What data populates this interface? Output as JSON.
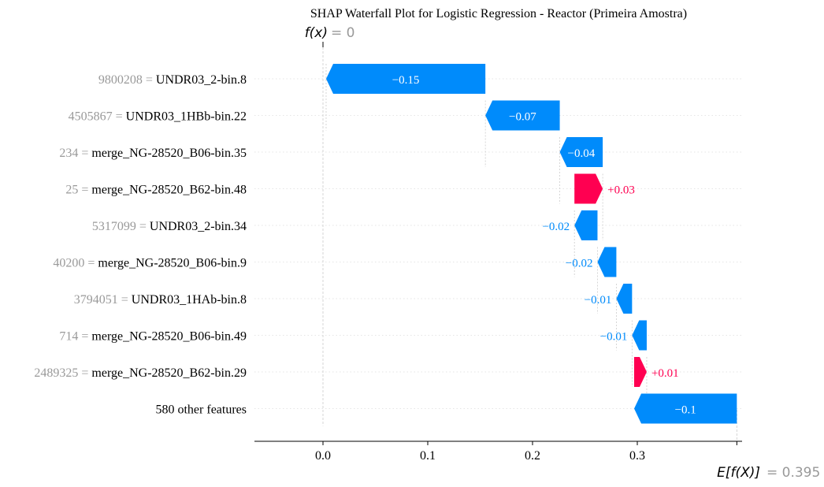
{
  "chart_data": {
    "type": "waterfall",
    "title": "SHAP Waterfall Plot for Logistic Regression - Reactor (Primeira Amostra)",
    "fx_label": "f(x)",
    "fx_value_text": "= 0",
    "base_label": "E[f(X)]",
    "base_value_text": "= 0.395",
    "base_value": 0.395,
    "fx_value": 0.0,
    "xlim": [
      -0.065,
      0.397
    ],
    "xticks": [
      0.0,
      0.1,
      0.2,
      0.3
    ],
    "xtick_labels": [
      "0.0",
      "0.1",
      "0.2",
      "0.3"
    ],
    "features": [
      {
        "value": "9800208",
        "name": "UNDR03_2-bin.8",
        "start": 0.155,
        "end": 0.003,
        "label": "−0.15",
        "sign": "neg"
      },
      {
        "value": "4505867",
        "name": "UNDR03_1HBb-bin.22",
        "start": 0.226,
        "end": 0.155,
        "label": "−0.07",
        "sign": "neg"
      },
      {
        "value": "234",
        "name": "merge_NG-28520_B06-bin.35",
        "start": 0.267,
        "end": 0.226,
        "label": "−0.04",
        "sign": "neg"
      },
      {
        "value": "25",
        "name": "merge_NG-28520_B62-bin.48",
        "start": 0.24,
        "end": 0.267,
        "label": "+0.03",
        "sign": "pos"
      },
      {
        "value": "5317099",
        "name": "UNDR03_2-bin.34",
        "start": 0.262,
        "end": 0.24,
        "label": "−0.02",
        "sign": "neg"
      },
      {
        "value": "40200",
        "name": "merge_NG-28520_B06-bin.9",
        "start": 0.28,
        "end": 0.262,
        "label": "−0.02",
        "sign": "neg"
      },
      {
        "value": "3794051",
        "name": "UNDR03_1HAb-bin.8",
        "start": 0.295,
        "end": 0.28,
        "label": "−0.01",
        "sign": "neg"
      },
      {
        "value": "714",
        "name": "merge_NG-28520_B06-bin.49",
        "start": 0.309,
        "end": 0.295,
        "label": "−0.01",
        "sign": "neg"
      },
      {
        "value": "2489325",
        "name": "merge_NG-28520_B62-bin.29",
        "start": 0.297,
        "end": 0.309,
        "label": "+0.01",
        "sign": "pos"
      },
      {
        "value": "",
        "name": "580 other features",
        "start": 0.395,
        "end": 0.297,
        "label": "−0.1",
        "sign": "neg"
      }
    ],
    "colors": {
      "negative": "#008bfb",
      "positive": "#ff0051",
      "gray_text": "#999999",
      "black": "#000000"
    }
  }
}
